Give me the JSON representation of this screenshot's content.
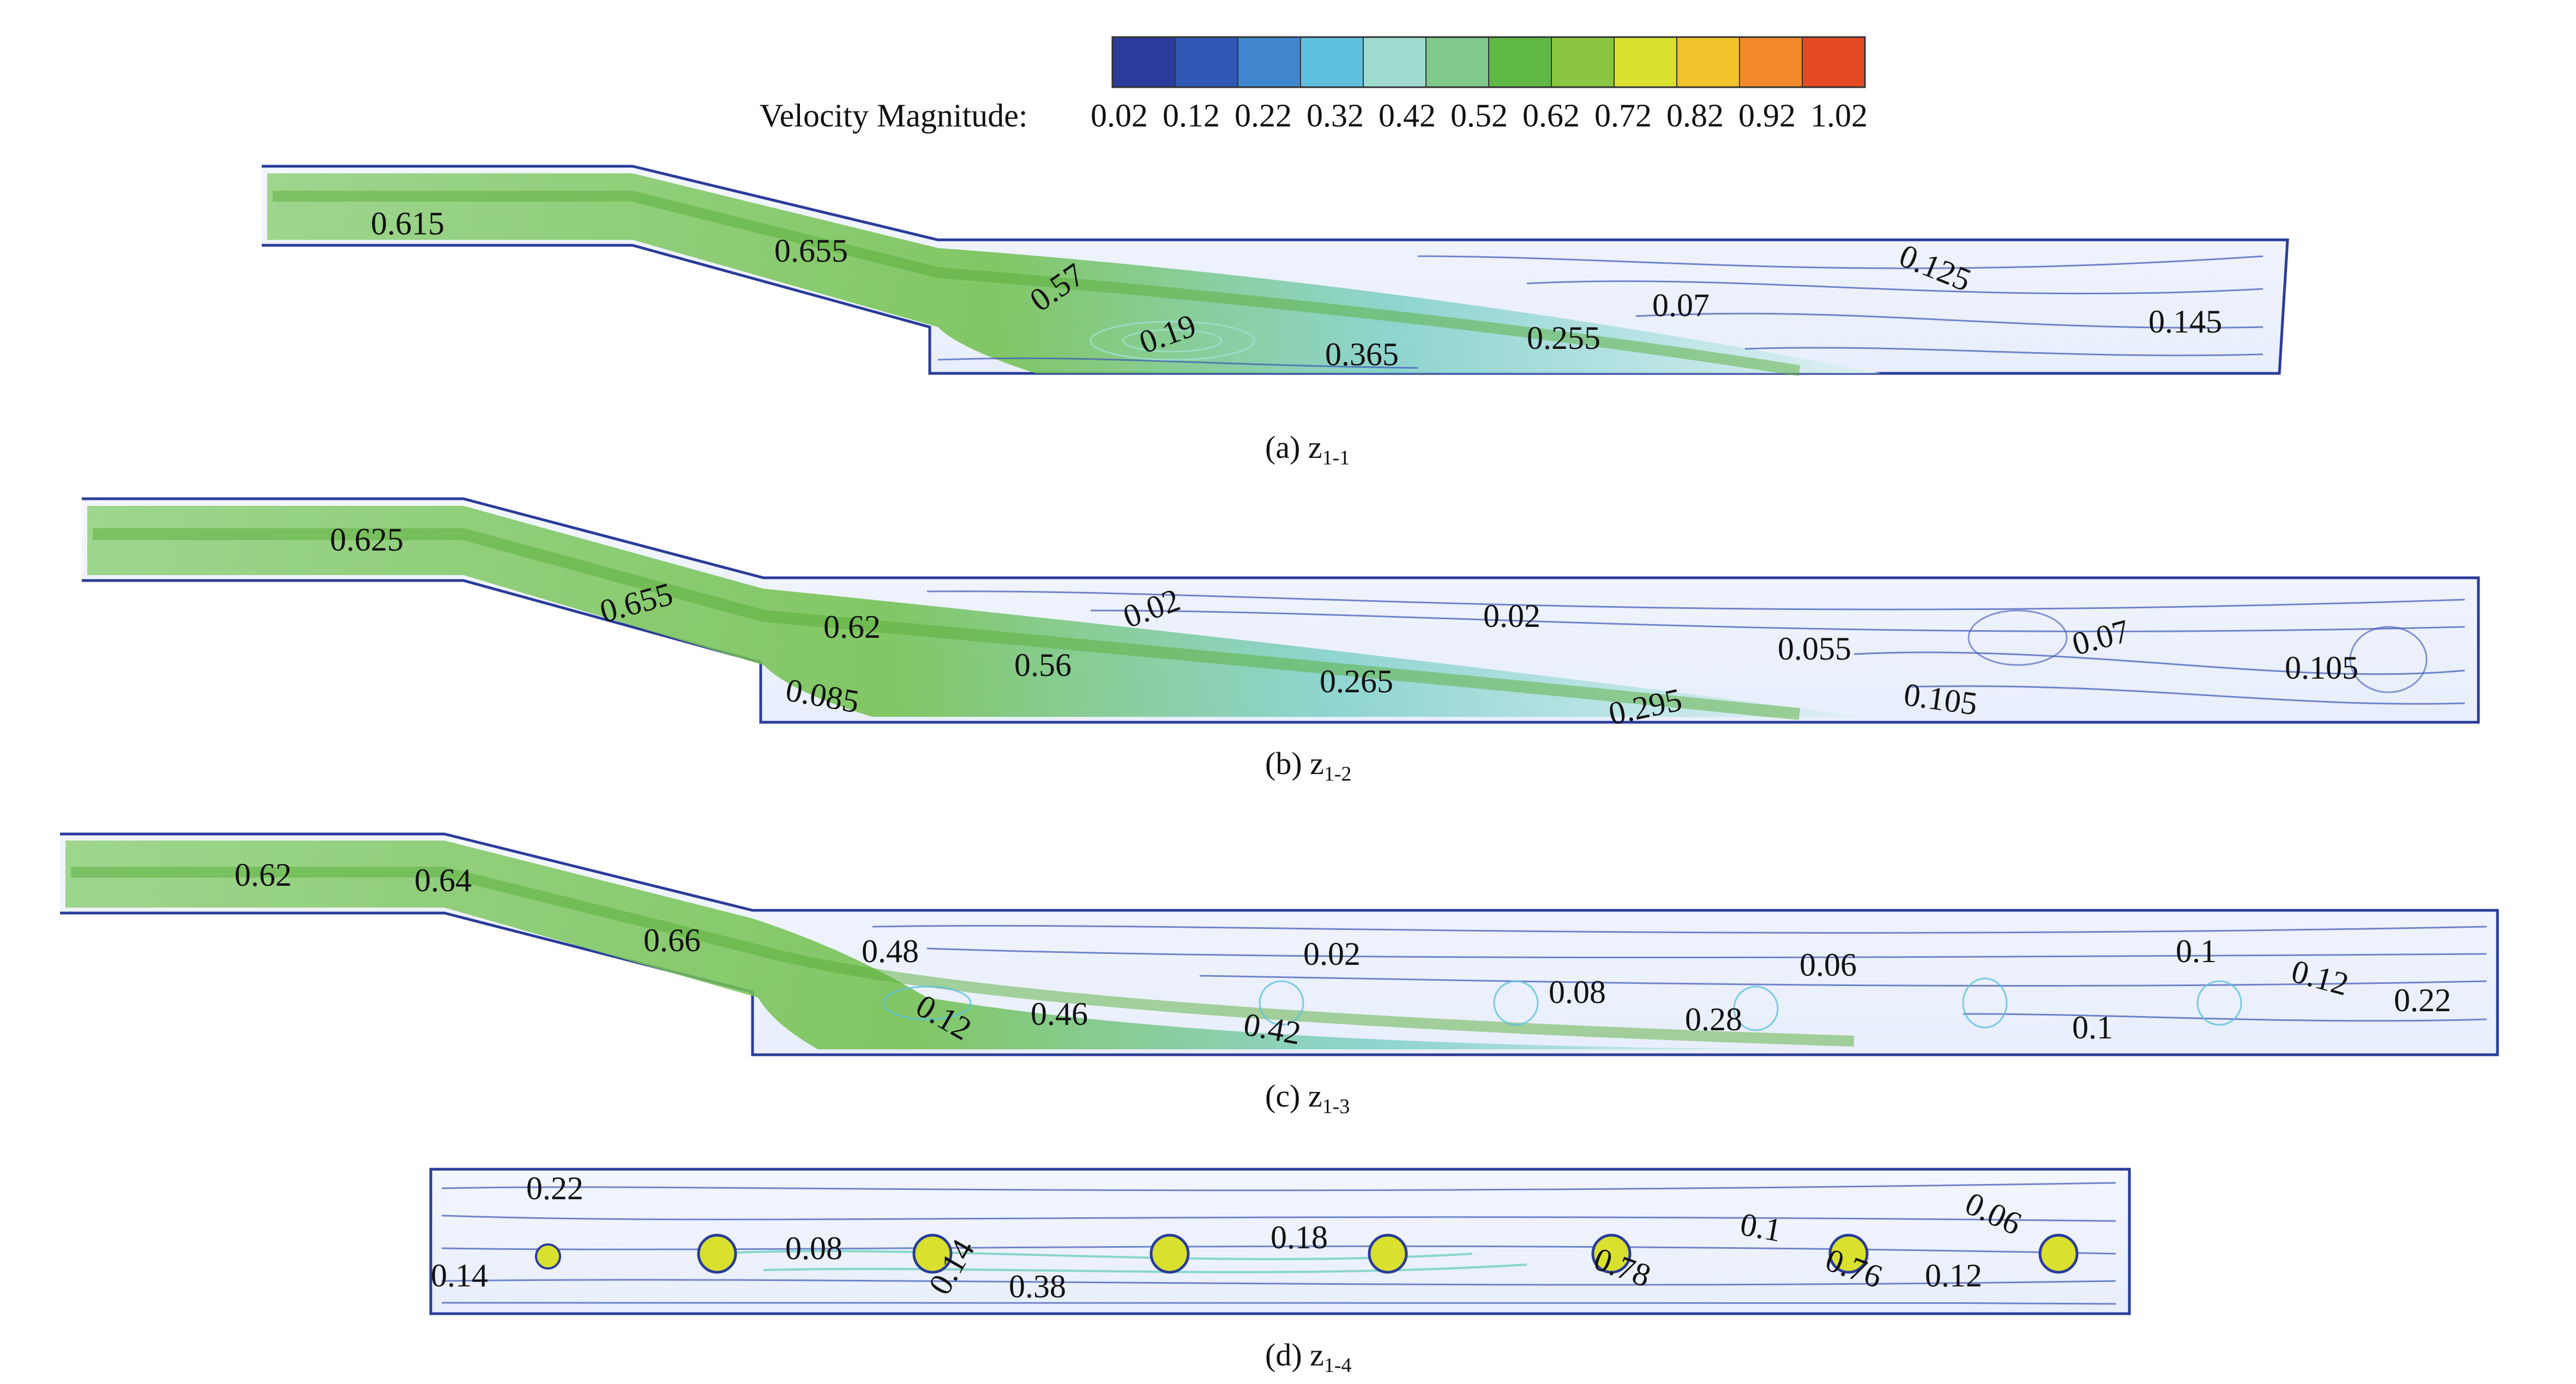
{
  "colorbar": {
    "label": "Velocity Magnitude:",
    "ticks": [
      "0.02",
      "0.12",
      "0.22",
      "0.32",
      "0.42",
      "0.52",
      "0.62",
      "0.72",
      "0.82",
      "0.92",
      "1.02"
    ],
    "colors": [
      "#2b3c9c",
      "#2f58b4",
      "#3f86cf",
      "#5fc0dd",
      "#9fdccf",
      "#7fc98a",
      "#5fb844",
      "#8ac640",
      "#d9e02e",
      "#f2c22a",
      "#f28a2a",
      "#e44b22"
    ]
  },
  "panels": [
    {
      "id": "a",
      "caption": "(a) z",
      "caption_sub": "1-1",
      "labels": [
        "0.615",
        "0.655",
        "0.57",
        "0.19",
        "0.365",
        "0.255",
        "0.07",
        "0.125",
        "0.145"
      ]
    },
    {
      "id": "b",
      "caption": "(b) z",
      "caption_sub": "1-2",
      "labels": [
        "0.625",
        "0.655",
        "0.62",
        "0.56",
        "0.085",
        "0.02",
        "0.02",
        "0.265",
        "0.295",
        "0.055",
        "0.07",
        "0.105",
        "0.105"
      ]
    },
    {
      "id": "c",
      "caption": "(c) z",
      "caption_sub": "1-3",
      "labels": [
        "0.62",
        "0.64",
        "0.66",
        "0.48",
        "0.12",
        "0.46",
        "0.42",
        "0.02",
        "0.08",
        "0.06",
        "0.28",
        "0.1",
        "0.12",
        "0.1",
        "0.22"
      ]
    },
    {
      "id": "d",
      "caption": "(d) z",
      "caption_sub": "1-4",
      "labels": [
        "0.22",
        "0.14",
        "0.08",
        "0.14",
        "0.38",
        "0.18",
        "0.78",
        "0.1",
        "0.76",
        "0.06",
        "0.12"
      ]
    }
  ]
}
